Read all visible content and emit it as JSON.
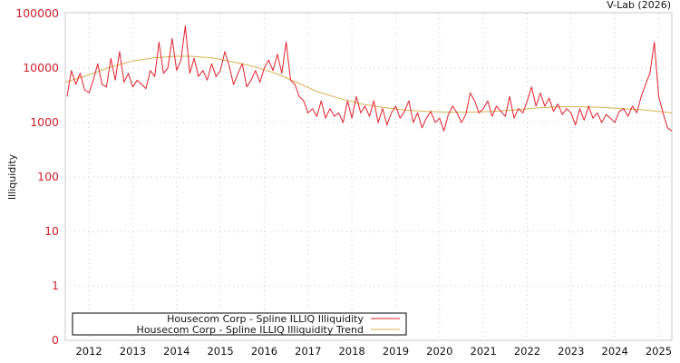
{
  "chart_data": {
    "type": "line",
    "title": "",
    "credit": "V-Lab (2026)",
    "xlabel": "",
    "ylabel": "Illiquidity",
    "yscale": "log",
    "ylim": [
      0.1,
      100000
    ],
    "xlim": [
      2011.46,
      2025.3
    ],
    "grid": true,
    "legend_position": "bottom-left",
    "y_ticks": [
      {
        "value": 100000,
        "label": "100000"
      },
      {
        "value": 10000,
        "label": "10000"
      },
      {
        "value": 1000,
        "label": "1000"
      },
      {
        "value": 100,
        "label": "100"
      },
      {
        "value": 10,
        "label": "10"
      },
      {
        "value": 1,
        "label": "1"
      },
      {
        "value": 0.1,
        "label": "0"
      }
    ],
    "x_ticks": [
      "2012",
      "2013",
      "2014",
      "2015",
      "2016",
      "2017",
      "2018",
      "2019",
      "2020",
      "2021",
      "2022",
      "2023",
      "2024",
      "2025"
    ],
    "series": [
      {
        "name": "Housecom Corp - Spline ILLIQ Illiquidity",
        "color": "#e0202a",
        "x": [
          2011.5,
          2011.6,
          2011.7,
          2011.8,
          2011.9,
          2012.0,
          2012.1,
          2012.2,
          2012.3,
          2012.4,
          2012.5,
          2012.6,
          2012.7,
          2012.8,
          2012.9,
          2013.0,
          2013.1,
          2013.2,
          2013.3,
          2013.4,
          2013.5,
          2013.6,
          2013.7,
          2013.8,
          2013.9,
          2014.0,
          2014.1,
          2014.2,
          2014.3,
          2014.4,
          2014.5,
          2014.6,
          2014.7,
          2014.8,
          2014.9,
          2015.0,
          2015.1,
          2015.2,
          2015.3,
          2015.4,
          2015.5,
          2015.6,
          2015.7,
          2015.8,
          2015.9,
          2016.0,
          2016.1,
          2016.2,
          2016.3,
          2016.4,
          2016.5,
          2016.6,
          2016.7,
          2016.8,
          2016.9,
          2017.0,
          2017.1,
          2017.2,
          2017.3,
          2017.4,
          2017.5,
          2017.6,
          2017.7,
          2017.8,
          2017.9,
          2018.0,
          2018.1,
          2018.2,
          2018.3,
          2018.4,
          2018.5,
          2018.6,
          2018.7,
          2018.8,
          2018.9,
          2019.0,
          2019.1,
          2019.2,
          2019.3,
          2019.4,
          2019.5,
          2019.6,
          2019.7,
          2019.8,
          2019.9,
          2020.0,
          2020.1,
          2020.2,
          2020.3,
          2020.4,
          2020.5,
          2020.6,
          2020.7,
          2020.8,
          2020.9,
          2021.0,
          2021.1,
          2021.2,
          2021.3,
          2021.4,
          2021.5,
          2021.6,
          2021.7,
          2021.8,
          2021.9,
          2022.0,
          2022.1,
          2022.2,
          2022.3,
          2022.4,
          2022.5,
          2022.6,
          2022.7,
          2022.8,
          2022.9,
          2023.0,
          2023.1,
          2023.2,
          2023.3,
          2023.4,
          2023.5,
          2023.6,
          2023.7,
          2023.8,
          2023.9,
          2024.0,
          2024.1,
          2024.2,
          2024.3,
          2024.4,
          2024.5,
          2024.6,
          2024.7,
          2024.8,
          2024.9,
          2025.0,
          2025.1,
          2025.2,
          2025.3
        ],
        "values": [
          3000,
          9000,
          5000,
          8000,
          4000,
          3500,
          6000,
          12000,
          5000,
          4500,
          15000,
          6000,
          20000,
          5500,
          8000,
          4500,
          6000,
          5000,
          4200,
          9000,
          7000,
          30000,
          8000,
          10000,
          35000,
          9000,
          14000,
          60000,
          8000,
          15000,
          7000,
          9000,
          6000,
          12000,
          7000,
          9000,
          20000,
          11000,
          5000,
          8000,
          12000,
          4500,
          6000,
          9000,
          5500,
          10000,
          14000,
          9000,
          18000,
          8000,
          30000,
          6000,
          5000,
          3000,
          2500,
          1500,
          1800,
          1300,
          2500,
          1200,
          1800,
          1300,
          1500,
          1000,
          2500,
          1200,
          3000,
          1500,
          2000,
          1300,
          2500,
          1000,
          1800,
          900,
          1500,
          2000,
          1200,
          1600,
          2500,
          1000,
          1500,
          800,
          1200,
          1600,
          1000,
          1200,
          700,
          1400,
          2000,
          1500,
          1000,
          1400,
          3500,
          2500,
          1500,
          1800,
          2500,
          1300,
          2000,
          1600,
          1300,
          3000,
          1200,
          1800,
          1500,
          2500,
          4500,
          2000,
          3500,
          2000,
          2800,
          1600,
          2200,
          1400,
          1800,
          1500,
          900,
          1800,
          1100,
          2000,
          1200,
          1500,
          1000,
          1400,
          1200,
          1000,
          1600,
          1800,
          1300,
          2000,
          1500,
          3000,
          5000,
          8000,
          30000,
          3000,
          1500,
          800,
          700
        ]
      },
      {
        "name": "Housecom Corp - Spline ILLIQ Illiquidity Trend",
        "color": "#d8b050",
        "x": [
          2011.46,
          2012.0,
          2012.5,
          2013.0,
          2013.5,
          2014.0,
          2014.3,
          2014.8,
          2015.3,
          2015.8,
          2016.3,
          2016.8,
          2017.2,
          2017.7,
          2018.2,
          2018.7,
          2019.2,
          2019.7,
          2020.2,
          2020.7,
          2021.2,
          2021.7,
          2022.2,
          2022.7,
          2023.2,
          2023.7,
          2024.2,
          2024.7,
          2025.3
        ],
        "values": [
          5500,
          7500,
          10500,
          13500,
          15500,
          16500,
          16500,
          15500,
          13000,
          10500,
          7800,
          5200,
          3700,
          2800,
          2200,
          1900,
          1700,
          1600,
          1550,
          1550,
          1600,
          1700,
          1850,
          1950,
          1950,
          1900,
          1800,
          1700,
          1500
        ]
      }
    ]
  }
}
